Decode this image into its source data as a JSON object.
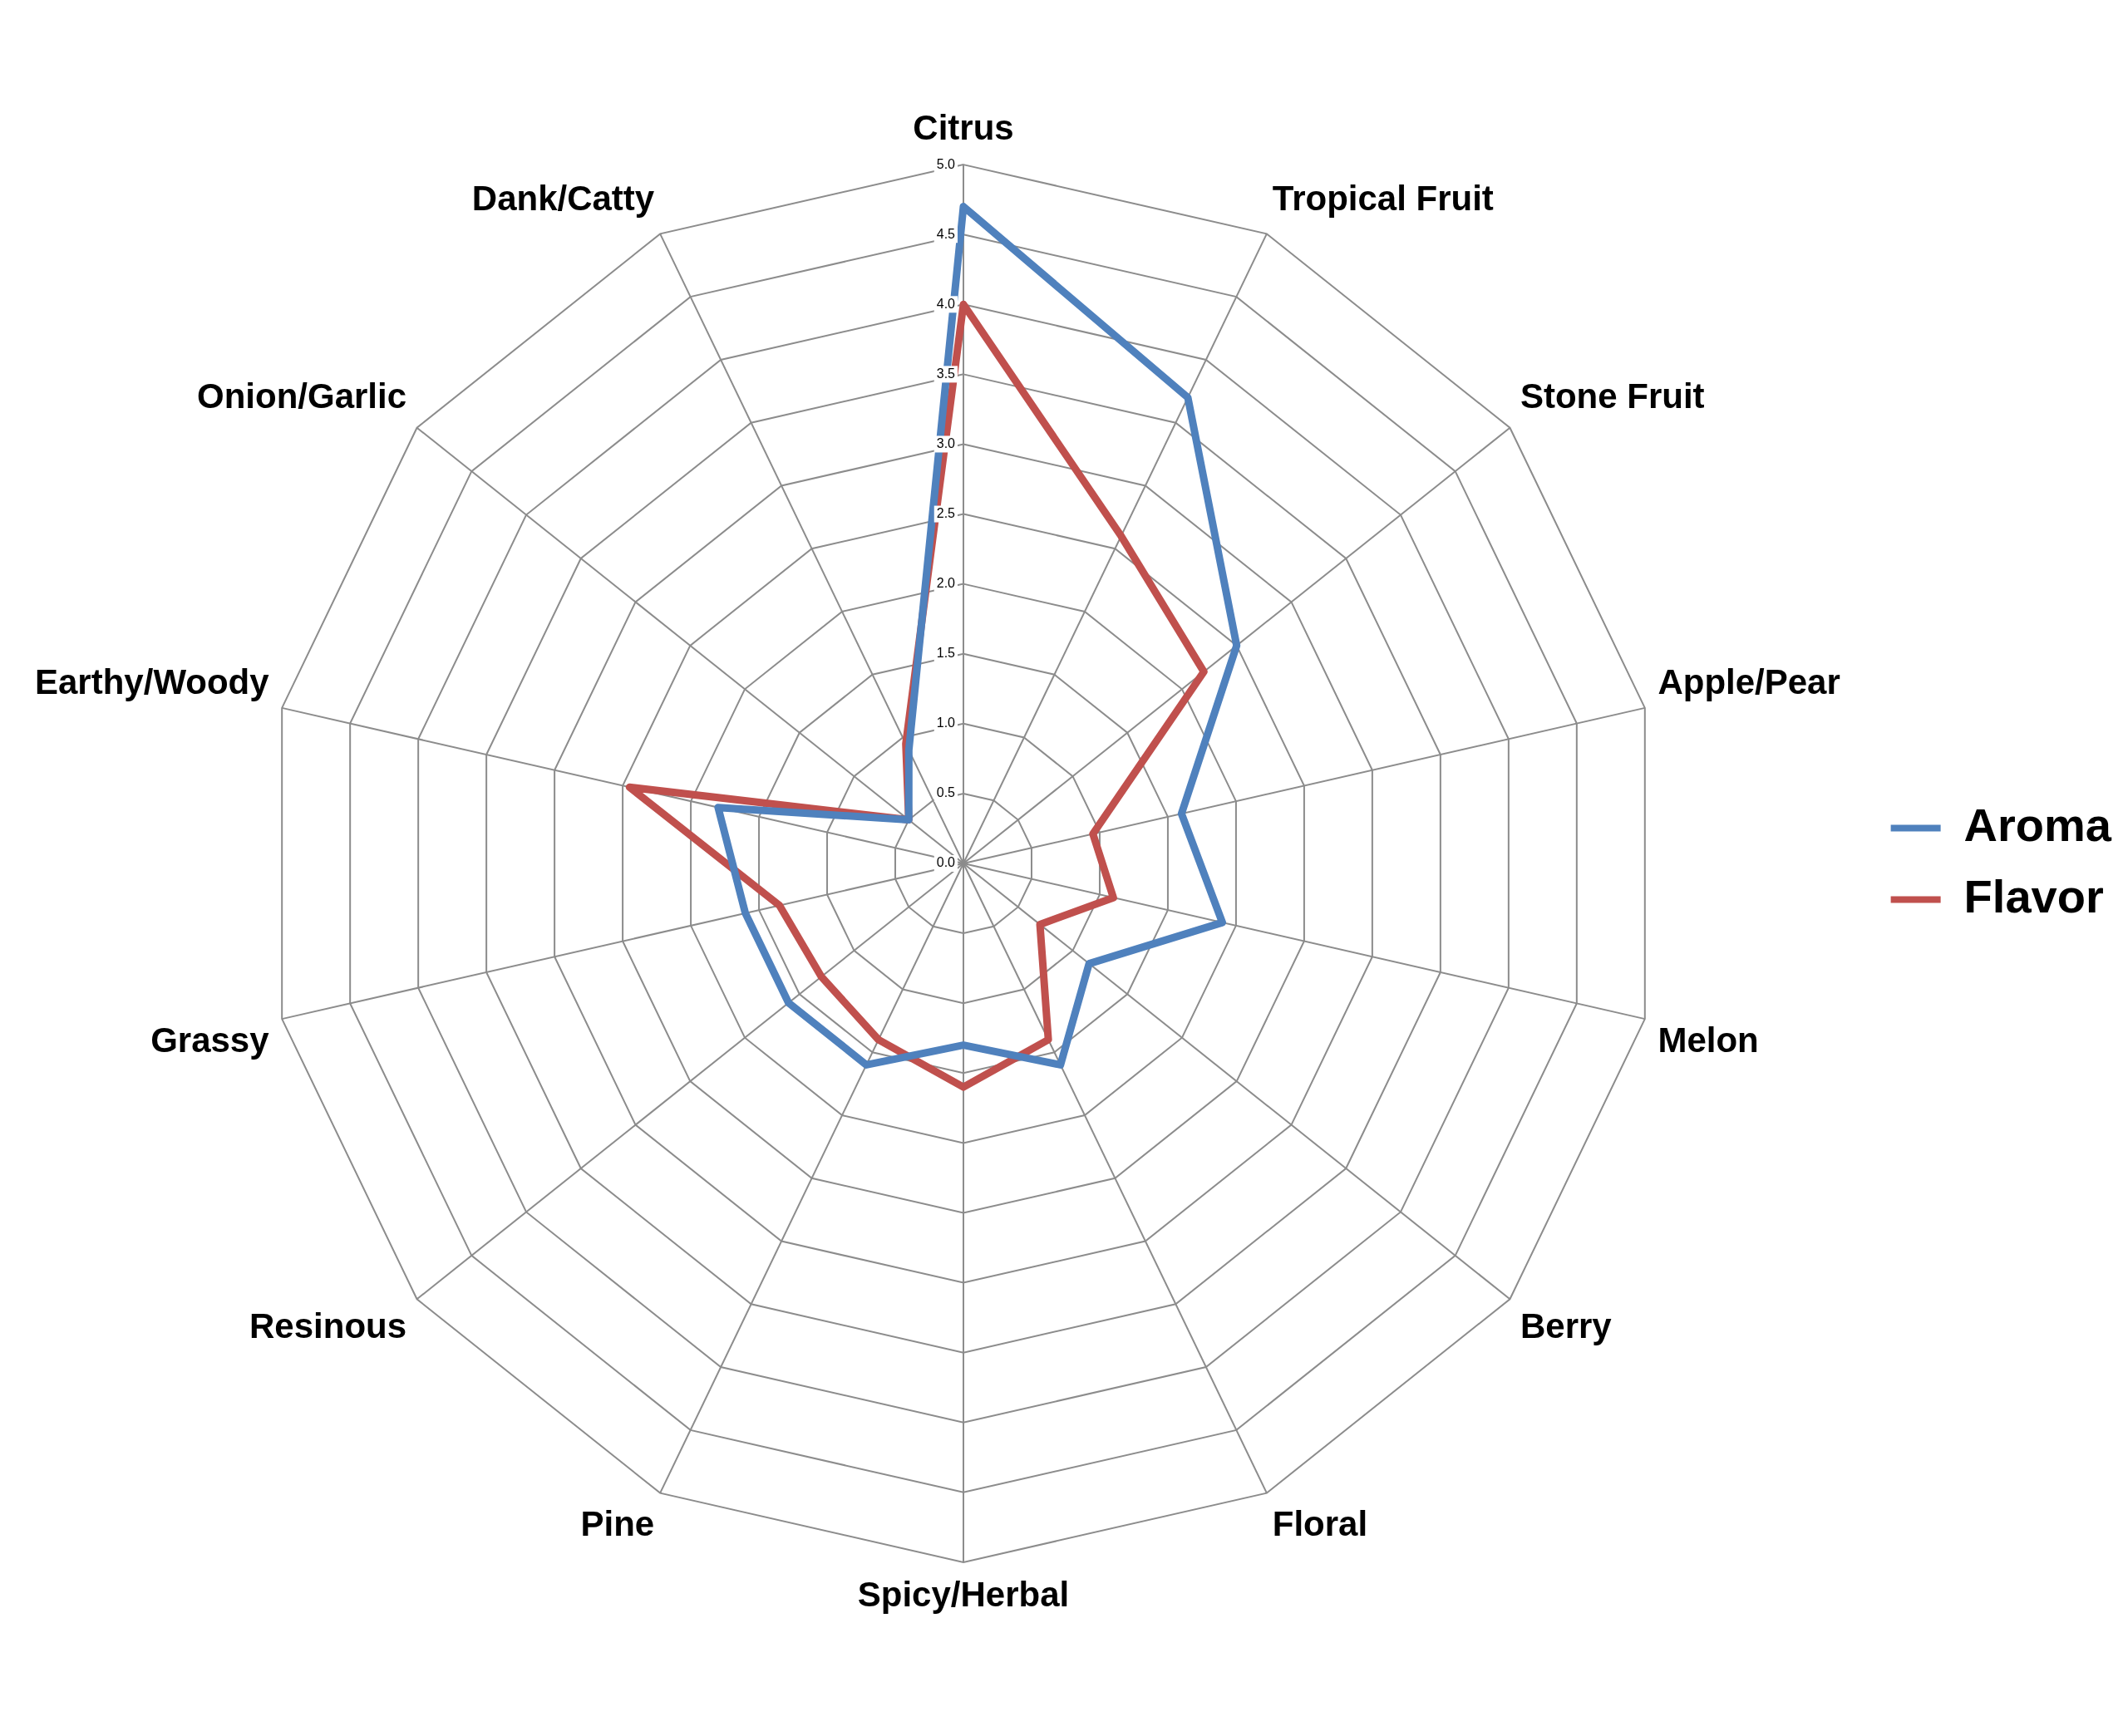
{
  "chart_data": {
    "type": "radar",
    "categories": [
      "Citrus",
      "Tropical Fruit",
      "Stone Fruit",
      "Apple/Pear",
      "Melon",
      "Berry",
      "Floral",
      "Spicy/Herbal",
      "Pine",
      "Resinous",
      "Grassy",
      "Earthy/Woody",
      "Onion/Garlic",
      "Dank/Catty"
    ],
    "series": [
      {
        "name": "Aroma",
        "color": "#4f81bd",
        "values": [
          4.7,
          3.7,
          2.5,
          1.6,
          1.9,
          1.15,
          1.6,
          1.3,
          1.6,
          1.6,
          1.6,
          1.8,
          0.5,
          0.9
        ]
      },
      {
        "name": "Flavor",
        "color": "#c0504d",
        "values": [
          4.0,
          2.6,
          2.2,
          0.95,
          1.1,
          0.7,
          1.4,
          1.6,
          1.4,
          1.3,
          1.35,
          2.45,
          0.5,
          0.95
        ]
      }
    ],
    "ylim": [
      0,
      5
    ],
    "yticks": [
      {
        "value": 0,
        "label": "0.0"
      },
      {
        "value": 0.5,
        "label": "0.5"
      },
      {
        "value": 1,
        "label": "1.0"
      },
      {
        "value": 1.5,
        "label": "1.5"
      },
      {
        "value": 2,
        "label": "2.0"
      },
      {
        "value": 2.5,
        "label": "2.5"
      },
      {
        "value": 3,
        "label": "3.0"
      },
      {
        "value": 3.5,
        "label": "3.5"
      },
      {
        "value": 4,
        "label": "4.0"
      },
      {
        "value": 4.5,
        "label": "4.5"
      },
      {
        "value": 5,
        "label": "5.0"
      }
    ],
    "grid": true,
    "legend": "right",
    "marker": "none",
    "line_style": "solid"
  }
}
